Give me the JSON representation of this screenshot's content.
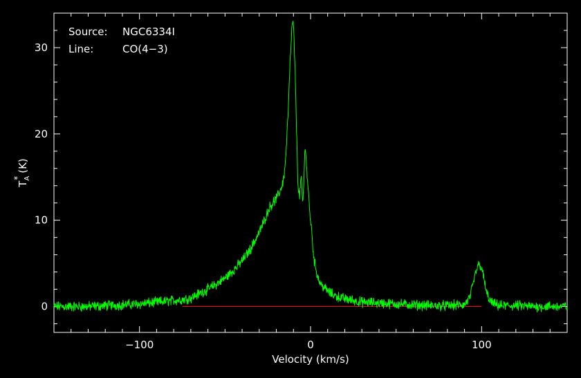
{
  "chart_data": {
    "type": "line",
    "xlabel": "Velocity (km/s)",
    "ylabel": {
      "main": "T",
      "sub": "A",
      "sup": "*",
      "unit": "(K)"
    },
    "xlim": [
      -150,
      150
    ],
    "ylim": [
      -3,
      34
    ],
    "x_ticks": [
      -100,
      0,
      100
    ],
    "x_tick_labels": [
      "−100",
      "0",
      "100"
    ],
    "y_ticks": [
      0,
      10,
      20,
      30
    ],
    "y_tick_labels": [
      "0",
      "10",
      "20",
      "30"
    ],
    "grid": false,
    "annotations": [
      {
        "key": "Source:",
        "value": "NGC6334I"
      },
      {
        "key": "Line:",
        "value": "CO(4−3)"
      }
    ],
    "baseline": {
      "y": 0,
      "x_range": [
        -75,
        100
      ],
      "color": "#ff0000"
    },
    "series": [
      {
        "color": "#00ff00",
        "x": [
          -150,
          -140,
          -130,
          -120,
          -110,
          -100,
          -90,
          -80,
          -75,
          -70,
          -65,
          -60,
          -55,
          -50,
          -45,
          -40,
          -35,
          -30,
          -28,
          -26,
          -24,
          -22,
          -20,
          -18,
          -16,
          -15,
          -14,
          -13,
          -12,
          -11,
          -10.5,
          -10,
          -9.5,
          -9,
          -8.5,
          -8,
          -7.5,
          -7,
          -6.5,
          -6,
          -5.5,
          -5,
          -4.5,
          -4,
          -3.5,
          -3,
          -2.5,
          -2,
          -1.5,
          -1,
          -0.5,
          0,
          0.5,
          1,
          1.5,
          2,
          3,
          4,
          5,
          6,
          8,
          10,
          12,
          15,
          20,
          25,
          30,
          40,
          50,
          60,
          70,
          80,
          90,
          93,
          95,
          96,
          97,
          98,
          99,
          100,
          101,
          102,
          103,
          105,
          107,
          110,
          120,
          130,
          140,
          150
        ],
        "y": [
          0,
          0,
          0,
          0.1,
          0.2,
          0.3,
          0.5,
          0.7,
          0.8,
          1.0,
          1.5,
          2.0,
          2.6,
          3.3,
          4.2,
          5.3,
          6.7,
          8.6,
          9.5,
          10.5,
          11.5,
          12.0,
          12.5,
          13.3,
          14.5,
          16,
          19,
          23,
          28,
          32,
          33,
          32.5,
          30,
          27,
          23,
          19,
          15,
          13.5,
          12.5,
          14,
          15,
          13,
          12,
          14,
          17,
          18.8,
          17,
          15,
          14,
          12.5,
          11,
          10,
          9,
          8,
          6.5,
          5.5,
          4.5,
          3.6,
          3.0,
          2.6,
          2.2,
          1.8,
          1.5,
          1.2,
          0.9,
          0.7,
          0.5,
          0.4,
          0.3,
          0.2,
          0.1,
          0.1,
          0.2,
          1.0,
          2.5,
          3.5,
          4.2,
          4.8,
          4.8,
          4.5,
          3.5,
          2.5,
          1.5,
          0.6,
          0.3,
          0.1,
          0.1,
          0,
          0,
          0
        ]
      }
    ]
  }
}
